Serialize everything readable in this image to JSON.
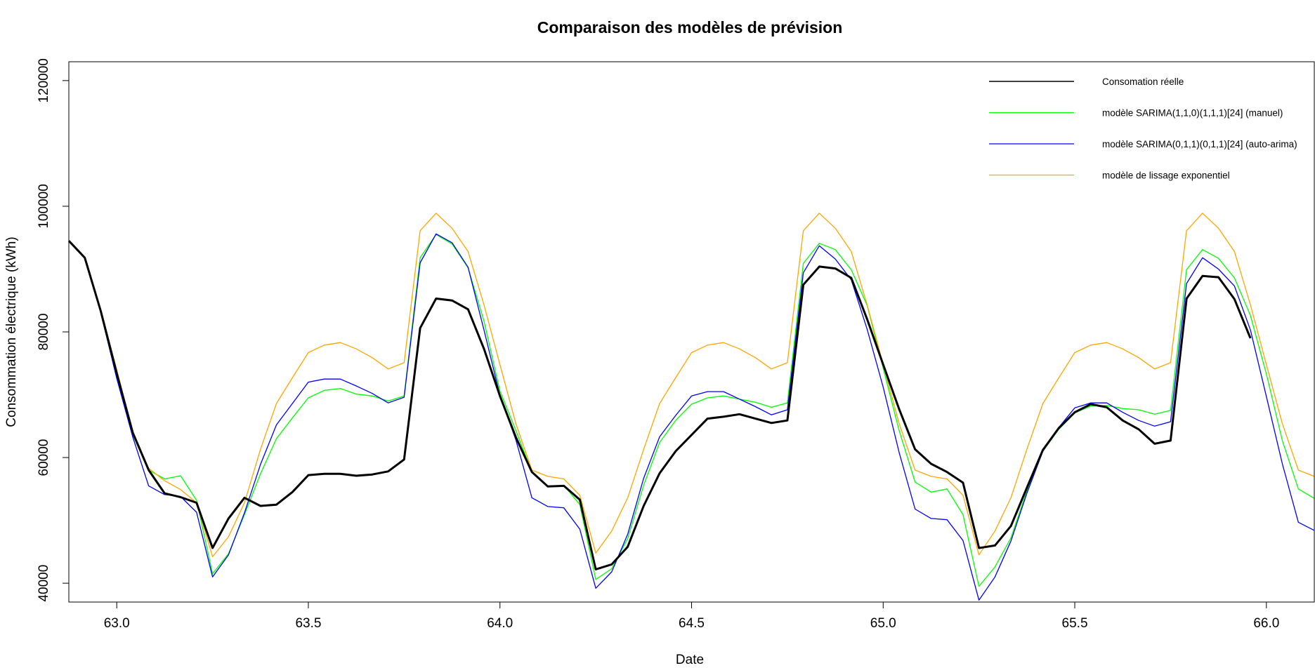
{
  "chart_data": {
    "type": "line",
    "title": "Comparaison des modèles de prévision",
    "xlabel": "Date",
    "ylabel": "Consommation électrique (kWh)",
    "xlim": [
      62.875,
      66.125
    ],
    "ylim": [
      37000,
      123000
    ],
    "x_ticks": [
      63.0,
      63.5,
      64.0,
      64.5,
      65.0,
      65.5,
      66.0
    ],
    "x_tick_labels": [
      "63.0",
      "63.5",
      "64.0",
      "64.5",
      "65.0",
      "65.5",
      "66.0"
    ],
    "y_ticks": [
      40000,
      60000,
      80000,
      100000,
      120000
    ],
    "y_tick_labels": [
      "40000",
      "60000",
      "80000",
      "100000",
      "120000"
    ],
    "grid": false,
    "legend_position": "top-right",
    "x_step": 0.041667,
    "series": [
      {
        "name": "Consomation réelle",
        "color": "#000000",
        "width": 3,
        "x_start": 62.875,
        "values": [
          94500,
          91800,
          83300,
          73400,
          64000,
          58000,
          54300,
          53700,
          52800,
          45600,
          50300,
          53600,
          52300,
          52500,
          54500,
          57200,
          57400,
          57400,
          57100,
          57300,
          57800,
          59700,
          80600,
          85300,
          85000,
          83600,
          77300,
          69800,
          63200,
          57700,
          55400,
          55500,
          53300,
          42200,
          43000,
          45800,
          52300,
          57500,
          61000,
          63600,
          66200,
          66500,
          66900,
          66200,
          65500,
          65900,
          87500,
          90400,
          90100,
          88600,
          82000,
          74800,
          67700,
          61300,
          59000,
          57700,
          56000,
          45600,
          46000,
          49100,
          55200,
          61200,
          64700,
          67200,
          68500,
          68000,
          65900,
          64500,
          62200,
          62700,
          85300,
          88900,
          88700,
          85200,
          79000
        ]
      },
      {
        "name": "modèle SARIMA(1,1,0)(1,1,1)[24] (manuel)",
        "color": "#00ff00",
        "width": 1.3,
        "x_start": 62.9583,
        "values": [
          82900,
          72800,
          63600,
          58000,
          56600,
          57100,
          53200,
          41500,
          44700,
          50900,
          57400,
          63000,
          66300,
          69500,
          70700,
          71000,
          70100,
          69800,
          69000,
          69800,
          91800,
          95500,
          94000,
          90200,
          81700,
          70600,
          64300,
          57700,
          55400,
          55600,
          52500,
          40600,
          42300,
          47100,
          55600,
          62400,
          65900,
          68500,
          69500,
          69800,
          69300,
          68800,
          68000,
          68700,
          90900,
          94100,
          93100,
          89900,
          84200,
          74200,
          64300,
          56100,
          54500,
          55000,
          50900,
          39500,
          42600,
          47200,
          54700,
          61000,
          64500,
          67100,
          68200,
          68300,
          67800,
          67600,
          66900,
          67500,
          89900,
          93100,
          91700,
          88600,
          82600,
          73300,
          62700,
          55000,
          53500
        ]
      },
      {
        "name": "modèle SARIMA(0,1,1)(0,1,1)[24] (auto-arima)",
        "color": "#0000ff",
        "width": 1.3,
        "x_start": 62.9583,
        "values": [
          83100,
          72600,
          63300,
          55500,
          54100,
          53800,
          51300,
          41000,
          44500,
          51200,
          58900,
          65200,
          68600,
          72000,
          72500,
          72500,
          71400,
          70200,
          68700,
          69600,
          91000,
          95600,
          94200,
          90300,
          80300,
          69900,
          62800,
          53600,
          52200,
          52000,
          48600,
          39200,
          41800,
          47800,
          56700,
          63300,
          66700,
          69800,
          70500,
          70500,
          69300,
          68100,
          66800,
          67600,
          89400,
          93700,
          91600,
          88300,
          80400,
          71200,
          60800,
          51800,
          50300,
          50100,
          46800,
          37300,
          41000,
          46700,
          54300,
          61000,
          64800,
          67900,
          68700,
          68700,
          67200,
          65900,
          65000,
          65700,
          87700,
          91800,
          90000,
          87300,
          80300,
          69700,
          59000,
          49700,
          48400
        ]
      },
      {
        "name": "modèle de lissage exponentiel",
        "color": "#ffa500",
        "width": 1.3,
        "x_start": 62.9583,
        "values": [
          83500,
          74000,
          64000,
          58300,
          56300,
          54900,
          52800,
          44200,
          47400,
          52800,
          61300,
          68600,
          72700,
          76700,
          77900,
          78300,
          77300,
          75900,
          74100,
          75100,
          96100,
          98900,
          96500,
          92800,
          84300,
          74800,
          65400,
          58000,
          57000,
          56600,
          54000,
          44800,
          48300,
          53600,
          61300,
          68600,
          72700,
          76700,
          77900,
          78300,
          77300,
          75900,
          74100,
          75100,
          96100,
          98900,
          96500,
          92800,
          84300,
          74800,
          65400,
          58000,
          57000,
          56600,
          54000,
          44500,
          48300,
          53600,
          61300,
          68600,
          72700,
          76700,
          77900,
          78300,
          77300,
          75900,
          74100,
          75100,
          96100,
          98900,
          96500,
          92800,
          84300,
          74800,
          65400,
          58000,
          57000
        ]
      }
    ]
  }
}
